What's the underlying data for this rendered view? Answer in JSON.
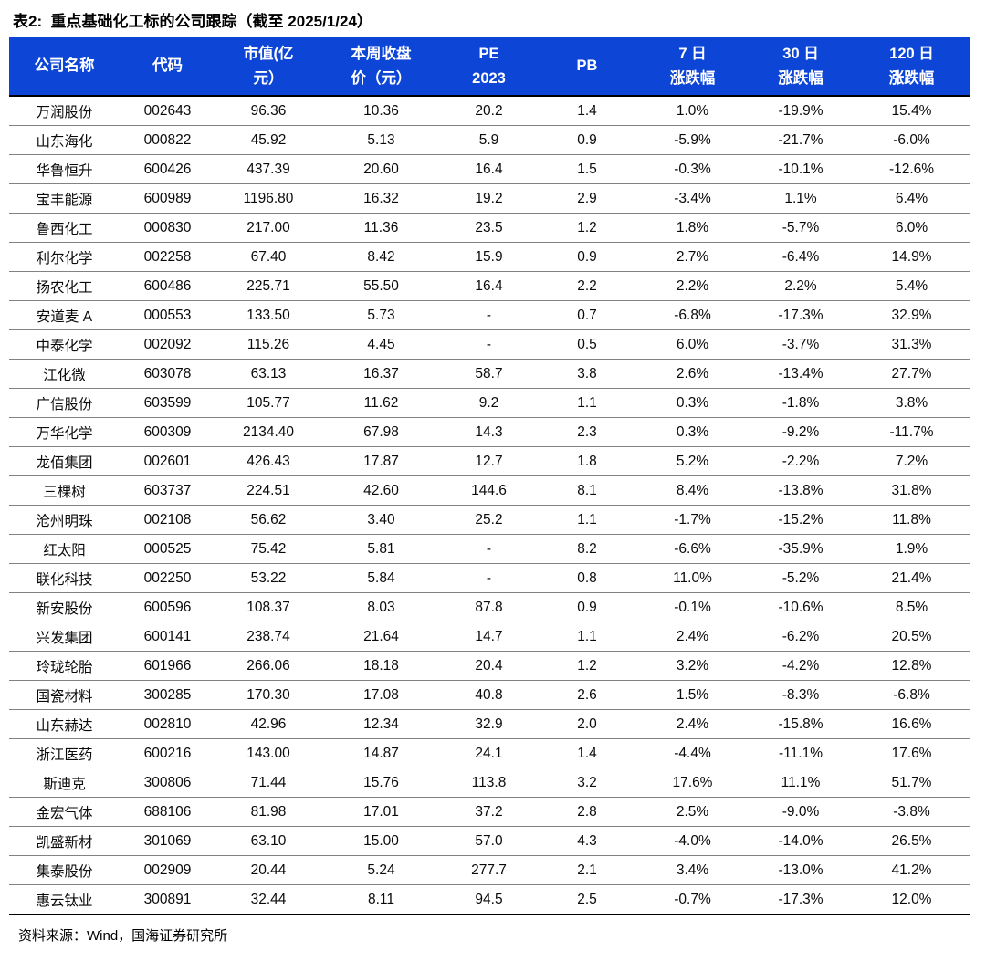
{
  "title": "表2:  重点基础化工标的公司跟踪（截至 2025/1/24）",
  "source": "资料来源：Wind，国海证券研究所",
  "colors": {
    "header_bg": "#0D45D6",
    "header_text": "#FFFFFF",
    "row_divider": "#828282",
    "strong_border": "#000000"
  },
  "table": {
    "columns": [
      {
        "id": "company_name",
        "lines": [
          "公司名称"
        ]
      },
      {
        "id": "code",
        "lines": [
          "代码"
        ]
      },
      {
        "id": "market_cap",
        "lines": [
          "市值(亿",
          "元）"
        ]
      },
      {
        "id": "week_close_price",
        "lines": [
          "本周收盘",
          "价（元）"
        ]
      },
      {
        "id": "pe_2023",
        "lines": [
          "PE",
          "2023"
        ]
      },
      {
        "id": "pb",
        "lines": [
          "PB"
        ]
      },
      {
        "id": "chg_7d",
        "lines": [
          "7 日",
          "涨跌幅"
        ]
      },
      {
        "id": "chg_30d",
        "lines": [
          "30 日",
          "涨跌幅"
        ]
      },
      {
        "id": "chg_120d",
        "lines": [
          "120 日",
          "涨跌幅"
        ]
      }
    ],
    "rows": [
      [
        "万润股份",
        "002643",
        "96.36",
        "10.36",
        "20.2",
        "1.4",
        "1.0%",
        "-19.9%",
        "15.4%"
      ],
      [
        "山东海化",
        "000822",
        "45.92",
        "5.13",
        "5.9",
        "0.9",
        "-5.9%",
        "-21.7%",
        "-6.0%"
      ],
      [
        "华鲁恒升",
        "600426",
        "437.39",
        "20.60",
        "16.4",
        "1.5",
        "-0.3%",
        "-10.1%",
        "-12.6%"
      ],
      [
        "宝丰能源",
        "600989",
        "1196.80",
        "16.32",
        "19.2",
        "2.9",
        "-3.4%",
        "1.1%",
        "6.4%"
      ],
      [
        "鲁西化工",
        "000830",
        "217.00",
        "11.36",
        "23.5",
        "1.2",
        "1.8%",
        "-5.7%",
        "6.0%"
      ],
      [
        "利尔化学",
        "002258",
        "67.40",
        "8.42",
        "15.9",
        "0.9",
        "2.7%",
        "-6.4%",
        "14.9%"
      ],
      [
        "扬农化工",
        "600486",
        "225.71",
        "55.50",
        "16.4",
        "2.2",
        "2.2%",
        "2.2%",
        "5.4%"
      ],
      [
        "安道麦 A",
        "000553",
        "133.50",
        "5.73",
        "-",
        "0.7",
        "-6.8%",
        "-17.3%",
        "32.9%"
      ],
      [
        "中泰化学",
        "002092",
        "115.26",
        "4.45",
        "-",
        "0.5",
        "6.0%",
        "-3.7%",
        "31.3%"
      ],
      [
        "江化微",
        "603078",
        "63.13",
        "16.37",
        "58.7",
        "3.8",
        "2.6%",
        "-13.4%",
        "27.7%"
      ],
      [
        "广信股份",
        "603599",
        "105.77",
        "11.62",
        "9.2",
        "1.1",
        "0.3%",
        "-1.8%",
        "3.8%"
      ],
      [
        "万华化学",
        "600309",
        "2134.40",
        "67.98",
        "14.3",
        "2.3",
        "0.3%",
        "-9.2%",
        "-11.7%"
      ],
      [
        "龙佰集团",
        "002601",
        "426.43",
        "17.87",
        "12.7",
        "1.8",
        "5.2%",
        "-2.2%",
        "7.2%"
      ],
      [
        "三棵树",
        "603737",
        "224.51",
        "42.60",
        "144.6",
        "8.1",
        "8.4%",
        "-13.8%",
        "31.8%"
      ],
      [
        "沧州明珠",
        "002108",
        "56.62",
        "3.40",
        "25.2",
        "1.1",
        "-1.7%",
        "-15.2%",
        "11.8%"
      ],
      [
        "红太阳",
        "000525",
        "75.42",
        "5.81",
        "-",
        "8.2",
        "-6.6%",
        "-35.9%",
        "1.9%"
      ],
      [
        "联化科技",
        "002250",
        "53.22",
        "5.84",
        "-",
        "0.8",
        "11.0%",
        "-5.2%",
        "21.4%"
      ],
      [
        "新安股份",
        "600596",
        "108.37",
        "8.03",
        "87.8",
        "0.9",
        "-0.1%",
        "-10.6%",
        "8.5%"
      ],
      [
        "兴发集团",
        "600141",
        "238.74",
        "21.64",
        "14.7",
        "1.1",
        "2.4%",
        "-6.2%",
        "20.5%"
      ],
      [
        "玲珑轮胎",
        "601966",
        "266.06",
        "18.18",
        "20.4",
        "1.2",
        "3.2%",
        "-4.2%",
        "12.8%"
      ],
      [
        "国瓷材料",
        "300285",
        "170.30",
        "17.08",
        "40.8",
        "2.6",
        "1.5%",
        "-8.3%",
        "-6.8%"
      ],
      [
        "山东赫达",
        "002810",
        "42.96",
        "12.34",
        "32.9",
        "2.0",
        "2.4%",
        "-15.8%",
        "16.6%"
      ],
      [
        "浙江医药",
        "600216",
        "143.00",
        "14.87",
        "24.1",
        "1.4",
        "-4.4%",
        "-11.1%",
        "17.6%"
      ],
      [
        "斯迪克",
        "300806",
        "71.44",
        "15.76",
        "113.8",
        "3.2",
        "17.6%",
        "11.1%",
        "51.7%"
      ],
      [
        "金宏气体",
        "688106",
        "81.98",
        "17.01",
        "37.2",
        "2.8",
        "2.5%",
        "-9.0%",
        "-3.8%"
      ],
      [
        "凯盛新材",
        "301069",
        "63.10",
        "15.00",
        "57.0",
        "4.3",
        "-4.0%",
        "-14.0%",
        "26.5%"
      ],
      [
        "集泰股份",
        "002909",
        "20.44",
        "5.24",
        "277.7",
        "2.1",
        "3.4%",
        "-13.0%",
        "41.2%"
      ],
      [
        "惠云钛业",
        "300891",
        "32.44",
        "8.11",
        "94.5",
        "2.5",
        "-0.7%",
        "-17.3%",
        "12.0%"
      ]
    ]
  }
}
